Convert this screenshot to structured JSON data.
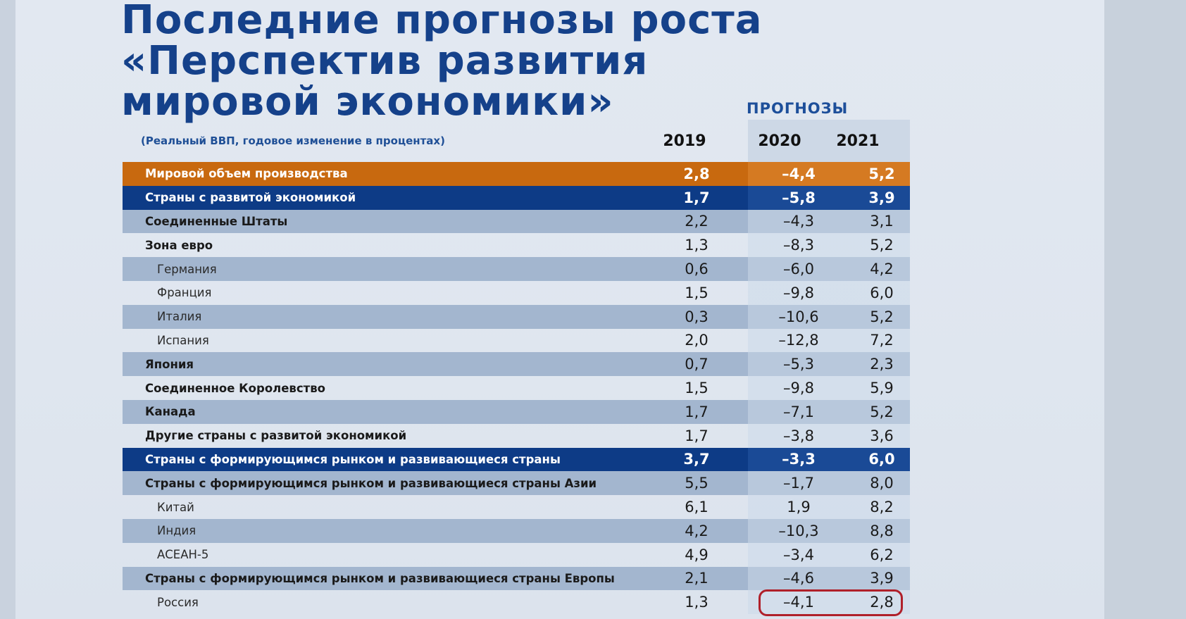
{
  "title_lines": [
    "Последние прогнозы роста",
    "«Перспектив развития",
    "мировой экономики»"
  ],
  "forecast_label": "ПРОГНОЗЫ",
  "subtitle": "(Реальный ВВП, годовое изменение в процентах)",
  "years": [
    "2019",
    "2020",
    "2021"
  ],
  "rows": [
    {
      "label": "Мировой объем производства",
      "v2019": "2,8",
      "v2020": "–4,4",
      "v2021": "5,2",
      "style": "orange",
      "level": 1
    },
    {
      "label": "Страны с развитой экономикой",
      "v2019": "1,7",
      "v2020": "–5,8",
      "v2021": "3,9",
      "style": "navy",
      "level": 1
    },
    {
      "label": "Соединенные Штаты",
      "v2019": "2,2",
      "v2020": "–4,3",
      "v2021": "3,1",
      "style": "odd",
      "level": 1
    },
    {
      "label": "Зона евро",
      "v2019": "1,3",
      "v2020": "–8,3",
      "v2021": "5,2",
      "style": "even",
      "level": 1
    },
    {
      "label": "Германия",
      "v2019": "0,6",
      "v2020": "–6,0",
      "v2021": "4,2",
      "style": "odd",
      "level": 2
    },
    {
      "label": "Франция",
      "v2019": "1,5",
      "v2020": "–9,8",
      "v2021": "6,0",
      "style": "even",
      "level": 2
    },
    {
      "label": "Италия",
      "v2019": "0,3",
      "v2020": "–10,6",
      "v2021": "5,2",
      "style": "odd",
      "level": 2
    },
    {
      "label": "Испания",
      "v2019": "2,0",
      "v2020": "–12,8",
      "v2021": "7,2",
      "style": "even",
      "level": 2
    },
    {
      "label": "Япония",
      "v2019": "0,7",
      "v2020": "–5,3",
      "v2021": "2,3",
      "style": "odd",
      "level": 1
    },
    {
      "label": "Соединенное Королевство",
      "v2019": "1,5",
      "v2020": "–9,8",
      "v2021": "5,9",
      "style": "even",
      "level": 1
    },
    {
      "label": "Канада",
      "v2019": "1,7",
      "v2020": "–7,1",
      "v2021": "5,2",
      "style": "odd",
      "level": 1
    },
    {
      "label": "Другие страны с развитой экономикой",
      "v2019": "1,7",
      "v2020": "–3,8",
      "v2021": "3,6",
      "style": "even",
      "level": 1
    },
    {
      "label": "Страны с формирующимся рынком и развивающиеся страны",
      "v2019": "3,7",
      "v2020": "–3,3",
      "v2021": "6,0",
      "style": "navy",
      "level": 1
    },
    {
      "label": "Страны с формирующимся рынком и развивающиеся страны Азии",
      "v2019": "5,5",
      "v2020": "–1,7",
      "v2021": "8,0",
      "style": "odd",
      "level": 1
    },
    {
      "label": "Китай",
      "v2019": "6,1",
      "v2020": "1,9",
      "v2021": "8,2",
      "style": "even",
      "level": 2
    },
    {
      "label": "Индия",
      "v2019": "4,2",
      "v2020": "–10,3",
      "v2021": "8,8",
      "style": "odd",
      "level": 2
    },
    {
      "label": "АСЕАН-5",
      "v2019": "4,9",
      "v2020": "–3,4",
      "v2021": "6,2",
      "style": "even",
      "level": 2
    },
    {
      "label": "Страны с формирующимся рынком и развивающиеся страны Европы",
      "v2019": "2,1",
      "v2020": "–4,6",
      "v2021": "3,9",
      "style": "odd",
      "level": 1
    },
    {
      "label": "Россия",
      "v2019": "1,3",
      "v2020": "–4,1",
      "v2021": "2,8",
      "style": "even",
      "level": 2
    }
  ]
}
